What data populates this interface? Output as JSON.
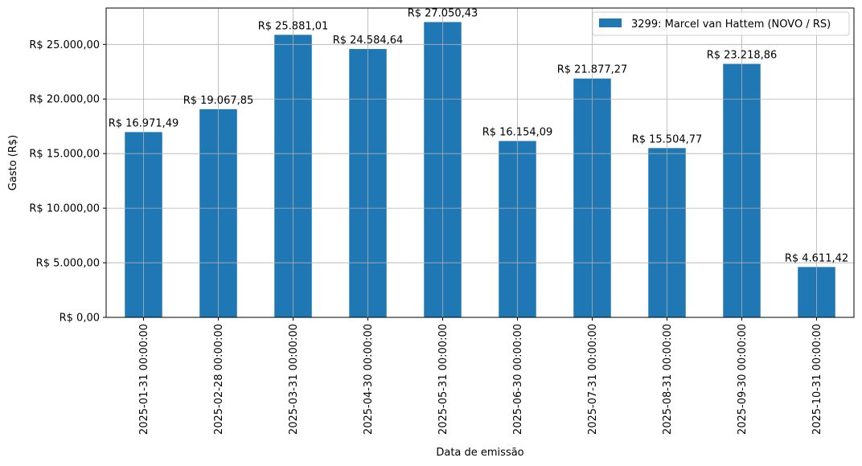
{
  "chart_data": {
    "type": "bar",
    "xlabel": "Data de emissão",
    "ylabel": "Gasto (R$)",
    "ylim": [
      0,
      28334
    ],
    "grid": true,
    "legend_position": "top-right",
    "categories": [
      "2025-01-31 00:00:00",
      "2025-02-28 00:00:00",
      "2025-03-31 00:00:00",
      "2025-04-30 00:00:00",
      "2025-05-31 00:00:00",
      "2025-06-30 00:00:00",
      "2025-07-31 00:00:00",
      "2025-08-31 00:00:00",
      "2025-09-30 00:00:00",
      "2025-10-31 00:00:00"
    ],
    "series": [
      {
        "name": "3299: Marcel van Hattem (NOVO / RS)",
        "color": "#1f77b4",
        "values": [
          16971.49,
          19067.85,
          25881.01,
          24584.64,
          27050.43,
          16154.09,
          21877.27,
          15504.77,
          23218.86,
          4611.42
        ],
        "labels": [
          "R$ 16.971,49",
          "R$ 19.067,85",
          "R$ 25.881,01",
          "R$ 24.584,64",
          "R$ 27.050,43",
          "R$ 16.154,09",
          "R$ 21.877,27",
          "R$ 15.504,77",
          "R$ 23.218,86",
          "R$ 4.611,42"
        ]
      }
    ],
    "yticks": [
      0,
      5000,
      10000,
      15000,
      20000,
      25000
    ],
    "ytick_labels": [
      "R$ 0,00",
      "R$ 5.000,00",
      "R$ 10.000,00",
      "R$ 15.000,00",
      "R$ 20.000,00",
      "R$ 25.000,00"
    ]
  }
}
